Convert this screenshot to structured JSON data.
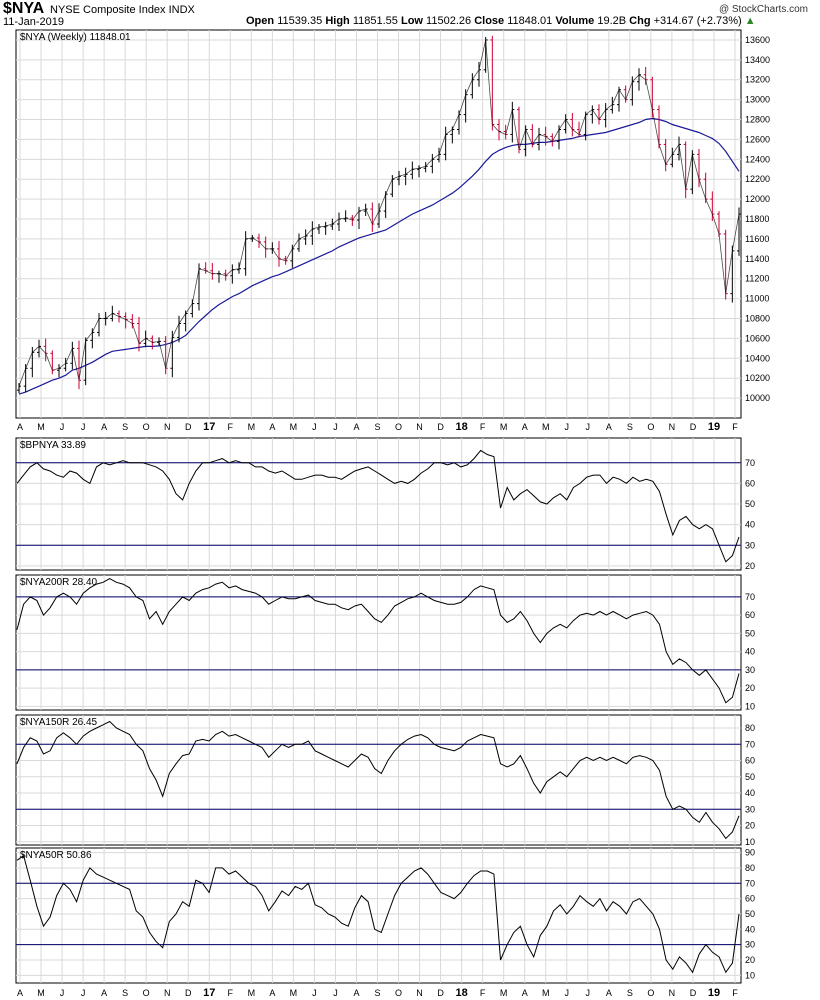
{
  "header": {
    "symbol": "$NYA",
    "name": "NYSE Composite Index INDX",
    "date": "11-Jan-2019",
    "open_label": "Open",
    "open": "11539.35",
    "high_label": "High",
    "high": "11851.55",
    "low_label": "Low",
    "low": "11502.26",
    "close_label": "Close",
    "close": "11848.01",
    "volume_label": "Volume",
    "volume": "19.2B",
    "chg_label": "Chg",
    "chg": "+314.67 (+2.73%)",
    "watermark": "@ StockCharts.com"
  },
  "colors": {
    "up": "#000000",
    "down": "#cc0033",
    "ma": "#1a1a99",
    "grid": "#d9d9d9",
    "band": "#000066"
  },
  "x_axis": {
    "labels": [
      "A",
      "M",
      "J",
      "J",
      "A",
      "S",
      "O",
      "N",
      "D",
      "17",
      "F",
      "M",
      "A",
      "M",
      "J",
      "J",
      "A",
      "S",
      "O",
      "N",
      "D",
      "18",
      "F",
      "M",
      "A",
      "M",
      "J",
      "J",
      "A",
      "S",
      "O",
      "N",
      "D",
      "19",
      "F"
    ],
    "bold": [
      "17",
      "18",
      "19"
    ]
  },
  "chart_data": [
    {
      "type": "candlestick",
      "title": "$NYA (Weekly) 11848.01",
      "legend": "$NYA (Weekly) 11848.01",
      "overlay": "moving average",
      "ylim": [
        9800,
        13700
      ],
      "yticks": [
        10000,
        10200,
        10400,
        10600,
        10800,
        11000,
        11200,
        11400,
        11600,
        11800,
        12000,
        12200,
        12400,
        12600,
        12800,
        13000,
        13200,
        13400,
        13600
      ],
      "close": [
        10120,
        10300,
        10460,
        10520,
        10450,
        10280,
        10300,
        10350,
        10500,
        10180,
        10580,
        10660,
        10800,
        10800,
        10850,
        10820,
        10790,
        10750,
        10550,
        10600,
        10560,
        10570,
        10300,
        10610,
        10750,
        10850,
        10950,
        11300,
        11280,
        11250,
        11250,
        11230,
        11290,
        11300,
        11600,
        11610,
        11570,
        11500,
        11500,
        11400,
        11380,
        11500,
        11600,
        11630,
        11700,
        11720,
        11730,
        11750,
        11800,
        11810,
        11790,
        11880,
        11900,
        11750,
        11880,
        12050,
        12200,
        12230,
        12250,
        12300,
        12310,
        12330,
        12400,
        12450,
        12650,
        12700,
        12850,
        13050,
        13200,
        13300,
        13600,
        12750,
        12680,
        12650,
        12900,
        12500,
        12700,
        12550,
        12650,
        12630,
        12580,
        12700,
        12800,
        12700,
        12650,
        12850,
        12900,
        12800,
        12900,
        12950,
        13100,
        13000,
        13180,
        13250,
        13200,
        12900,
        12550,
        12350,
        12450,
        12550,
        12100,
        12450,
        12200,
        12000,
        11850,
        11650,
        11050,
        11480,
        11850
      ],
      "ma": [
        10040,
        10060,
        10090,
        10120,
        10150,
        10180,
        10200,
        10230,
        10280,
        10300,
        10330,
        10360,
        10400,
        10440,
        10470,
        10480,
        10490,
        10500,
        10510,
        10520,
        10520,
        10525,
        10540,
        10560,
        10590,
        10630,
        10700,
        10770,
        10830,
        10890,
        10940,
        10980,
        11020,
        11050,
        11090,
        11130,
        11160,
        11190,
        11220,
        11240,
        11270,
        11300,
        11330,
        11360,
        11390,
        11420,
        11450,
        11480,
        11520,
        11550,
        11580,
        11610,
        11630,
        11650,
        11670,
        11690,
        11730,
        11770,
        11810,
        11850,
        11880,
        11910,
        11940,
        11980,
        12020,
        12060,
        12110,
        12170,
        12230,
        12300,
        12380,
        12450,
        12490,
        12520,
        12540,
        12550,
        12550,
        12560,
        12570,
        12570,
        12580,
        12590,
        12600,
        12610,
        12630,
        12640,
        12650,
        12660,
        12670,
        12690,
        12710,
        12730,
        12750,
        12770,
        12800,
        12810,
        12800,
        12780,
        12750,
        12730,
        12710,
        12690,
        12670,
        12640,
        12610,
        12560,
        12480,
        12380,
        12280
      ]
    },
    {
      "type": "line",
      "title": "$BPNYA 33.89",
      "legend": "$BPNYA 33.89",
      "ylim": [
        18,
        82
      ],
      "yticks": [
        20,
        30,
        40,
        50,
        60,
        70
      ],
      "bands": [
        30,
        70
      ],
      "values": [
        60,
        64,
        68,
        70,
        67,
        66,
        64,
        63,
        66,
        65,
        62,
        60,
        68,
        70,
        69,
        70,
        71,
        70,
        70,
        70,
        69,
        68,
        66,
        62,
        55,
        52,
        60,
        66,
        70,
        70,
        71,
        72,
        70,
        71,
        70,
        70,
        68,
        68,
        66,
        65,
        66,
        64,
        62,
        62,
        63,
        64,
        64,
        63,
        63,
        62,
        64,
        66,
        67,
        68,
        66,
        64,
        62,
        60,
        61,
        60,
        62,
        65,
        67,
        70,
        70,
        69,
        70,
        68,
        69,
        72,
        76,
        74,
        73,
        48,
        58,
        52,
        55,
        57,
        54,
        51,
        50,
        53,
        55,
        52,
        58,
        60,
        63,
        64,
        64,
        60,
        63,
        62,
        60,
        63,
        61,
        62,
        61,
        56,
        45,
        35,
        42,
        44,
        40,
        38,
        40,
        38,
        30,
        22,
        25,
        34
      ],
      "ylabel": ""
    },
    {
      "type": "line",
      "title": "$NYA200R 28.40",
      "legend": "$NYA200R 28.40",
      "ylim": [
        8,
        82
      ],
      "yticks": [
        10,
        20,
        30,
        40,
        50,
        60,
        70
      ],
      "bands": [
        30,
        70
      ],
      "values": [
        52,
        66,
        70,
        68,
        60,
        64,
        70,
        72,
        70,
        66,
        72,
        75,
        77,
        78,
        80,
        78,
        77,
        75,
        70,
        68,
        58,
        62,
        55,
        62,
        66,
        70,
        68,
        72,
        74,
        75,
        77,
        78,
        75,
        76,
        74,
        73,
        72,
        70,
        66,
        68,
        70,
        69,
        69,
        70,
        71,
        68,
        67,
        66,
        66,
        64,
        63,
        65,
        66,
        62,
        58,
        56,
        60,
        65,
        67,
        69,
        70,
        72,
        70,
        68,
        67,
        66,
        66,
        67,
        70,
        74,
        76,
        75,
        74,
        60,
        56,
        58,
        62,
        57,
        50,
        45,
        50,
        53,
        55,
        53,
        57,
        60,
        61,
        60,
        62,
        60,
        62,
        60,
        58,
        60,
        61,
        62,
        60,
        55,
        40,
        33,
        36,
        34,
        30,
        27,
        30,
        25,
        20,
        12,
        15,
        28
      ],
      "ylabel": ""
    },
    {
      "type": "line",
      "title": "$NYA150R 26.45",
      "legend": "$NYA150R 26.45",
      "ylim": [
        8,
        88
      ],
      "yticks": [
        10,
        20,
        30,
        40,
        50,
        60,
        70,
        80
      ],
      "bands": [
        30,
        70
      ],
      "values": [
        58,
        68,
        74,
        72,
        64,
        66,
        74,
        77,
        74,
        70,
        75,
        78,
        80,
        82,
        84,
        80,
        78,
        76,
        70,
        66,
        55,
        48,
        38,
        52,
        58,
        63,
        64,
        72,
        73,
        72,
        76,
        78,
        75,
        76,
        74,
        72,
        70,
        68,
        62,
        66,
        70,
        68,
        70,
        70,
        72,
        66,
        64,
        62,
        60,
        58,
        56,
        60,
        64,
        62,
        55,
        52,
        60,
        66,
        70,
        73,
        75,
        76,
        74,
        70,
        68,
        67,
        66,
        68,
        72,
        74,
        76,
        75,
        74,
        58,
        56,
        58,
        63,
        55,
        46,
        40,
        47,
        50,
        53,
        50,
        55,
        60,
        62,
        60,
        62,
        60,
        62,
        60,
        58,
        62,
        63,
        62,
        60,
        54,
        38,
        30,
        32,
        30,
        25,
        22,
        28,
        22,
        18,
        12,
        16,
        26
      ],
      "ylabel": ""
    },
    {
      "type": "line",
      "title": "$NYA50R 50.86",
      "legend": "$NYA50R 50.86",
      "ylim": [
        5,
        93
      ],
      "yticks": [
        10,
        20,
        30,
        40,
        50,
        60,
        70,
        80,
        90
      ],
      "bands": [
        30,
        70
      ],
      "values": [
        85,
        88,
        72,
        55,
        42,
        48,
        62,
        70,
        66,
        58,
        72,
        80,
        76,
        74,
        72,
        70,
        68,
        66,
        52,
        48,
        38,
        32,
        28,
        45,
        50,
        58,
        55,
        72,
        70,
        64,
        80,
        80,
        76,
        78,
        74,
        70,
        68,
        62,
        52,
        58,
        65,
        62,
        68,
        66,
        70,
        56,
        54,
        50,
        48,
        44,
        42,
        54,
        62,
        58,
        40,
        38,
        50,
        62,
        70,
        74,
        78,
        80,
        76,
        70,
        64,
        62,
        60,
        64,
        70,
        75,
        78,
        78,
        76,
        20,
        30,
        38,
        42,
        30,
        22,
        36,
        42,
        52,
        56,
        50,
        55,
        62,
        58,
        55,
        60,
        52,
        58,
        55,
        50,
        58,
        60,
        55,
        50,
        40,
        20,
        14,
        22,
        18,
        12,
        24,
        30,
        25,
        22,
        12,
        18,
        50
      ],
      "ylabel": ""
    }
  ]
}
